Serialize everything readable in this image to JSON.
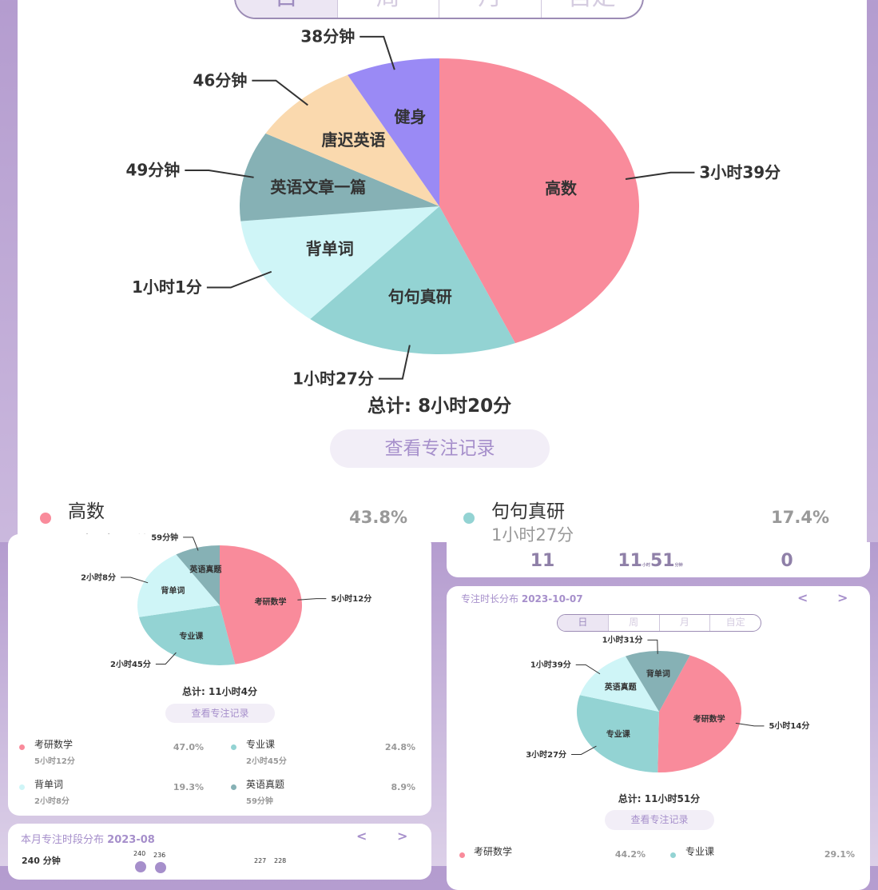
{
  "colors": {
    "pink": "#F98B9B",
    "teal": "#93D3D3",
    "cyan": "#CFF5F7",
    "darkteal": "#86B1B5",
    "peach": "#FAD9AE",
    "purple": "#9A8AF5",
    "accent": "#A68FCB"
  },
  "tabs": [
    "日",
    "周",
    "月",
    "自定"
  ],
  "top": {
    "total": "总计: 8小时20分",
    "records_button": "查看专注记录",
    "legend": [
      {
        "name": "高数",
        "pct": "43.8%",
        "time": "3小时39分"
      },
      {
        "name": "句句真研",
        "pct": "17.4%",
        "time": "1小时27分"
      }
    ]
  },
  "stats": {
    "count": "11",
    "hours": "11",
    "hours_unit": "小时",
    "minutes": "51",
    "minutes_unit": "分钟",
    "other": "0"
  },
  "left": {
    "total": "总计: 11小时4分",
    "records_button": "查看专注记录",
    "legend": [
      {
        "name": "考研数学",
        "pct": "47.0%",
        "time": "5小时12分"
      },
      {
        "name": "专业课",
        "pct": "24.8%",
        "time": "2小时45分"
      },
      {
        "name": "背单词",
        "pct": "19.3%",
        "time": "2小时8分"
      },
      {
        "name": "英语真题",
        "pct": "8.9%",
        "time": "59分钟"
      }
    ],
    "month_title": "本月专注时段分布",
    "month": "2023-08",
    "y_label": "240 分钟",
    "bar_labels": [
      "240",
      "236",
      "227",
      "228"
    ]
  },
  "right": {
    "title": "专注时长分布",
    "date": "2023-10-07",
    "prev": "<",
    "next": ">",
    "total": "总计: 11小时51分",
    "records_button": "查看专注记录",
    "legend": [
      {
        "name": "考研数学",
        "pct": "44.2%"
      },
      {
        "name": "专业课",
        "pct": "29.1%"
      }
    ]
  },
  "chart_data": [
    {
      "type": "pie",
      "slices": [
        {
          "label": "高数",
          "value": 219,
          "text": "3小时39分",
          "color": "#F98B9B"
        },
        {
          "label": "句句真研",
          "value": 87,
          "text": "1小时27分",
          "color": "#93D3D3"
        },
        {
          "label": "背单词",
          "value": 61,
          "text": "1小时1分",
          "color": "#CFF5F7"
        },
        {
          "label": "英语文章一篇",
          "value": 49,
          "text": "49分钟",
          "color": "#86B1B5"
        },
        {
          "label": "唐迟英语",
          "value": 46,
          "text": "46分钟",
          "color": "#FAD9AE"
        },
        {
          "label": "健身",
          "value": 38,
          "text": "38分钟",
          "color": "#9A8AF5"
        }
      ]
    },
    {
      "type": "pie",
      "slices": [
        {
          "label": "考研数学",
          "value": 312,
          "text": "5小时12分",
          "color": "#F98B9B"
        },
        {
          "label": "专业课",
          "value": 165,
          "text": "2小时45分",
          "color": "#93D3D3"
        },
        {
          "label": "背单词",
          "value": 128,
          "text": "2小时8分",
          "color": "#CFF5F7"
        },
        {
          "label": "英语真题",
          "value": 59,
          "text": "59分钟",
          "color": "#86B1B5"
        }
      ]
    },
    {
      "type": "pie",
      "slices": [
        {
          "label": "考研数学",
          "value": 314,
          "text": "5小时14分",
          "color": "#F98B9B"
        },
        {
          "label": "专业课",
          "value": 207,
          "text": "3小时27分",
          "color": "#93D3D3"
        },
        {
          "label": "英语真题",
          "value": 99,
          "text": "1小时39分",
          "color": "#CFF5F7"
        },
        {
          "label": "背单词",
          "value": 91,
          "text": "1小时31分",
          "color": "#86B1B5"
        }
      ]
    }
  ]
}
